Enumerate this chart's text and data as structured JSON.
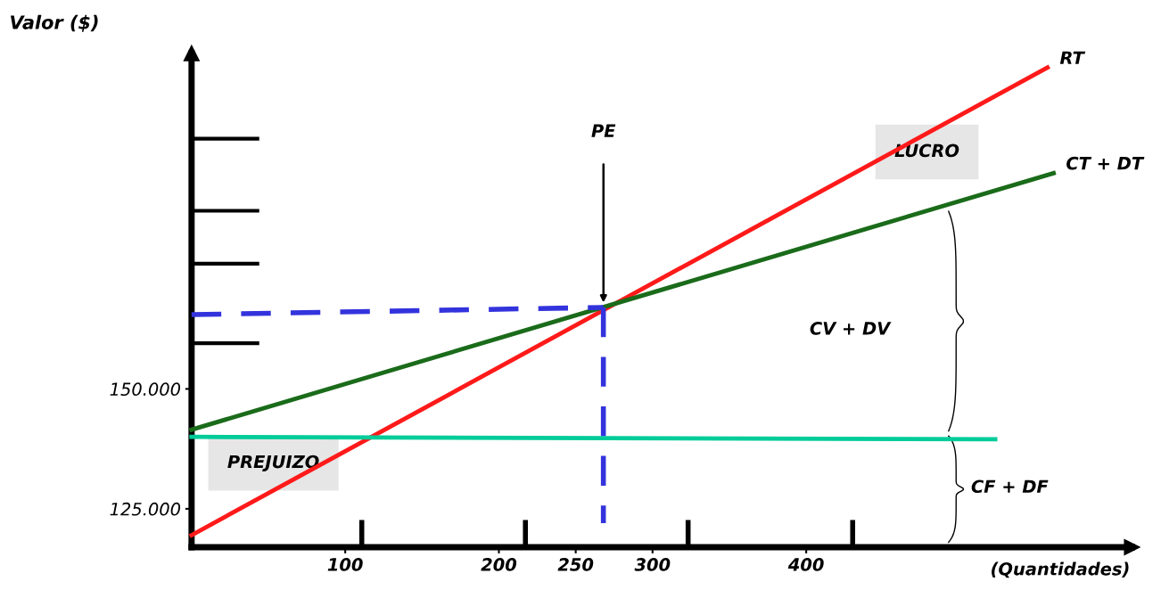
{
  "chart_data": {
    "type": "line",
    "xlabel": "(Quantidades)",
    "ylabel": "Valor ($)",
    "xlim": [
      0,
      612
    ],
    "ylim": [
      117000,
      220000
    ],
    "xticks": [
      100,
      200,
      250,
      300,
      400
    ],
    "yticks": [
      {
        "value": 125000,
        "label": "125.000"
      },
      {
        "value": 150000,
        "label": "150.000"
      }
    ],
    "grid": false,
    "legend": false,
    "marker": "none",
    "series": [
      {
        "name": "RT",
        "color": "#ff1a1a",
        "x": [
          0,
          557
        ],
        "values": [
          119500,
          217000
        ]
      },
      {
        "name": "CT + DT",
        "color": "#1a6b1a",
        "x": [
          0,
          561
        ],
        "values": [
          141500,
          195000
        ]
      },
      {
        "color": "#00cc99",
        "x": [
          0,
          523
        ],
        "values": [
          140000,
          139500
        ]
      },
      {
        "color": "#3333dd",
        "line_style": "dashed",
        "x": [
          0,
          268
        ],
        "values": [
          165500,
          167000
        ]
      },
      {
        "color": "#3333dd",
        "line_style": "dashed",
        "x": [
          268,
          268
        ],
        "values": [
          167000,
          122000
        ]
      }
    ],
    "annotations": [
      "PE",
      "LUCRO",
      "PREJUIZO",
      "CV + DV",
      "CF + DF"
    ]
  }
}
